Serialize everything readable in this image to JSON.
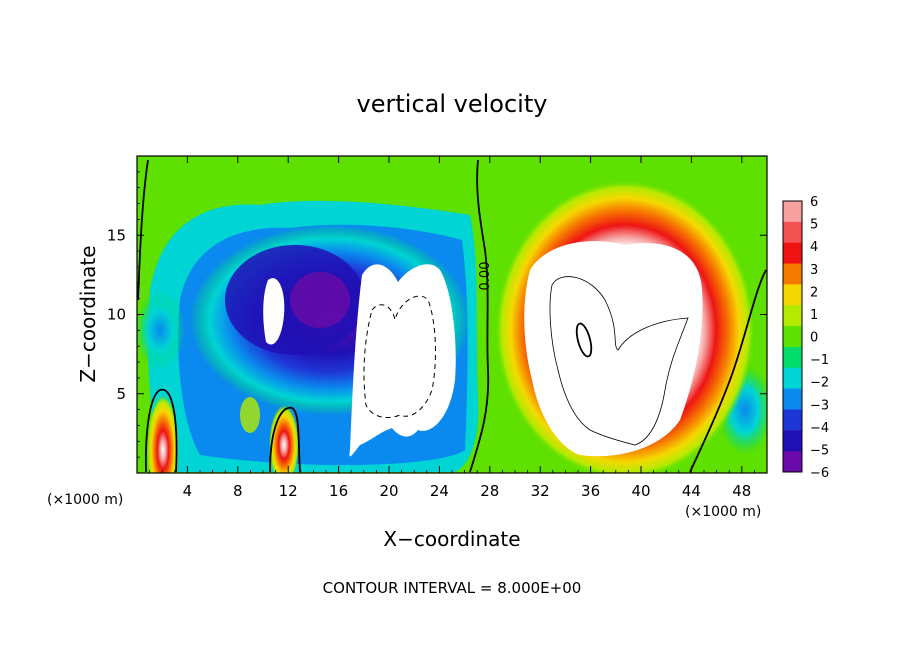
{
  "chart_data": {
    "type": "heatmap",
    "title": "vertical velocity",
    "xlabel": "X−coordinate",
    "ylabel": "Z−coordinate",
    "x_unit_left": "(×1000 m)",
    "x_unit_right": "(×1000 m)",
    "xlim": [
      0,
      50
    ],
    "ylim": [
      0,
      20
    ],
    "x_ticks": [
      4,
      8,
      12,
      16,
      20,
      24,
      28,
      32,
      36,
      40,
      44,
      48
    ],
    "y_ticks": [
      5,
      10,
      15
    ],
    "colorbar": {
      "levels": [
        6,
        5,
        4,
        3,
        2,
        1,
        0,
        -1,
        -2,
        -3,
        -4,
        -5,
        -6
      ],
      "labels": [
        "6",
        "5",
        "4",
        "3",
        "2",
        "1",
        "0",
        "−1",
        "−2",
        "−3",
        "−4",
        "−5",
        "−6"
      ],
      "colors": [
        "#f6a0a0",
        "#f25252",
        "#ee1414",
        "#f77a00",
        "#f5d800",
        "#b4ea00",
        "#5ee000",
        "#00dc6a",
        "#00d4d4",
        "#0a8aee",
        "#1f36d6",
        "#2010b4",
        "#6a0aa8"
      ]
    },
    "contour_label": "0.00",
    "contour_interval_text": "CONTOUR INTERVAL = 8.000E+00",
    "features": [
      {
        "kind": "updraft",
        "x_center": 37.5,
        "z_center": 9.5,
        "peak_sign": "positive"
      },
      {
        "kind": "downdraft",
        "x_center": 15,
        "z_center": 11,
        "peak_sign": "negative"
      },
      {
        "kind": "clipped-core",
        "x_center": 21,
        "z_center": 9,
        "peak_sign": "negative"
      },
      {
        "kind": "positive-cell",
        "x_center": 2.2,
        "z_center": 1.5,
        "peak_sign": "positive"
      },
      {
        "kind": "positive-cell",
        "x_center": 11.8,
        "z_center": 2,
        "peak_sign": "positive"
      }
    ]
  }
}
